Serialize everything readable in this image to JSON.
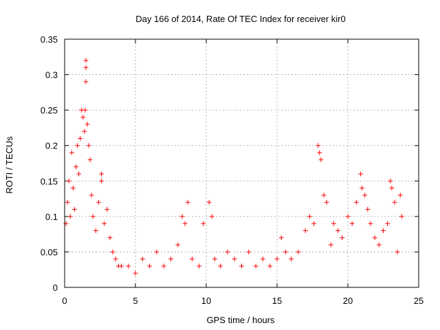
{
  "chart_data": {
    "type": "scatter",
    "title": "Day 166 of 2014, Rate Of TEC Index for receiver kir0",
    "xlabel": "GPS time / hours",
    "ylabel": "ROTI / TECUs",
    "xlim": [
      0,
      25
    ],
    "ylim": [
      0,
      0.35
    ],
    "x_ticks": [
      0,
      5,
      10,
      15,
      20,
      25
    ],
    "x_tick_labels": [
      "0",
      "5",
      "10",
      "15",
      "20",
      "25"
    ],
    "y_ticks": [
      0,
      0.05,
      0.1,
      0.15,
      0.2,
      0.25,
      0.3,
      0.35
    ],
    "y_tick_labels": [
      "0",
      "0.05",
      "0.1",
      "0.15",
      "0.2",
      "0.25",
      "0.3",
      "0.35"
    ],
    "grid": true,
    "marker": "+",
    "color": "#ff0000",
    "series": [
      {
        "x": [
          0.1,
          0.2,
          0.3,
          0.4,
          0.5,
          0.6,
          0.7,
          0.8,
          0.9,
          1.0,
          1.1,
          1.2,
          1.3,
          1.4,
          1.5,
          1.5,
          1.5,
          1.45,
          1.6,
          1.7,
          1.8,
          1.9,
          2.0,
          2.2,
          2.4,
          2.6,
          2.6,
          2.8,
          3.0,
          3.2,
          3.4,
          3.6,
          3.8,
          4.0,
          4.5,
          5.0,
          5.5,
          6.0,
          6.5,
          7.0,
          7.5,
          8.0,
          8.3,
          8.5,
          8.7,
          9.0,
          9.5,
          9.8,
          10.2,
          10.4,
          10.6,
          11.0,
          11.5,
          12.0,
          12.5,
          13.0,
          13.5,
          14.0,
          14.5,
          15.0,
          15.3,
          15.6,
          16.0,
          16.5,
          17.0,
          17.3,
          17.6,
          17.9,
          18.0,
          18.1,
          18.3,
          18.5,
          18.8,
          19.0,
          19.3,
          19.6,
          20.0,
          20.3,
          20.6,
          20.9,
          21.0,
          21.2,
          21.4,
          21.6,
          21.9,
          22.2,
          22.5,
          22.8,
          23.0,
          23.1,
          23.3,
          23.5,
          23.7,
          23.8
        ],
        "y": [
          0.09,
          0.12,
          0.15,
          0.1,
          0.19,
          0.14,
          0.11,
          0.17,
          0.2,
          0.16,
          0.21,
          0.25,
          0.24,
          0.22,
          0.32,
          0.31,
          0.29,
          0.25,
          0.23,
          0.2,
          0.18,
          0.13,
          0.1,
          0.08,
          0.12,
          0.16,
          0.15,
          0.09,
          0.11,
          0.07,
          0.05,
          0.04,
          0.03,
          0.03,
          0.03,
          0.02,
          0.04,
          0.03,
          0.05,
          0.03,
          0.04,
          0.06,
          0.1,
          0.09,
          0.12,
          0.04,
          0.03,
          0.09,
          0.12,
          0.1,
          0.04,
          0.03,
          0.05,
          0.04,
          0.03,
          0.05,
          0.03,
          0.04,
          0.03,
          0.04,
          0.07,
          0.05,
          0.04,
          0.05,
          0.08,
          0.1,
          0.09,
          0.2,
          0.19,
          0.18,
          0.13,
          0.12,
          0.06,
          0.09,
          0.08,
          0.07,
          0.1,
          0.09,
          0.12,
          0.16,
          0.14,
          0.13,
          0.11,
          0.09,
          0.07,
          0.06,
          0.08,
          0.09,
          0.15,
          0.14,
          0.12,
          0.05,
          0.13,
          0.1
        ]
      }
    ]
  }
}
